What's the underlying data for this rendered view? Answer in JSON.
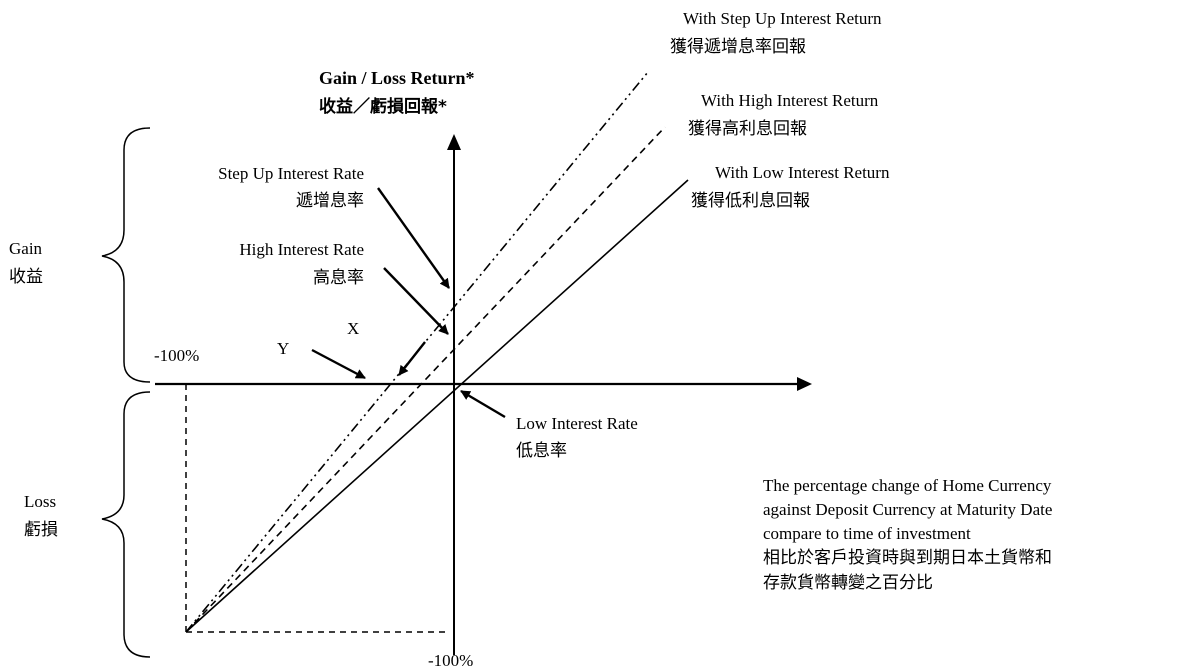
{
  "axis": {
    "y_title_en": "Gain / Loss Return*",
    "y_title_zh": "收益／虧損回報*",
    "x_desc_en_1": "The percentage change of Home Currency",
    "x_desc_en_2": "against Deposit Currency at Maturity Date",
    "x_desc_en_3": "compare to time of investment",
    "x_desc_zh_1": "相比於客戶投資時與到期日本土貨幣和",
    "x_desc_zh_2": "存款貨幣轉變之百分比",
    "x_neg100": "-100%",
    "y_neg100": "-100%"
  },
  "lines": {
    "step_up_en": "With Step Up Interest Return",
    "step_up_zh": "獲得遞增息率回報",
    "high_en": "With High Interest Return",
    "high_zh": "獲得高利息回報",
    "low_en": "With Low Interest Return",
    "low_zh": "獲得低利息回報"
  },
  "rates": {
    "step_up_en": "Step Up Interest Rate",
    "step_up_zh": "遞增息率",
    "high_en": "High Interest Rate",
    "high_zh": "高息率",
    "low_en": "Low Interest Rate",
    "low_zh": "低息率"
  },
  "points": {
    "x": "X",
    "y": "Y"
  },
  "regions": {
    "gain_en": "Gain",
    "gain_zh": "收益",
    "loss_en": "Loss",
    "loss_zh": "虧損"
  }
}
